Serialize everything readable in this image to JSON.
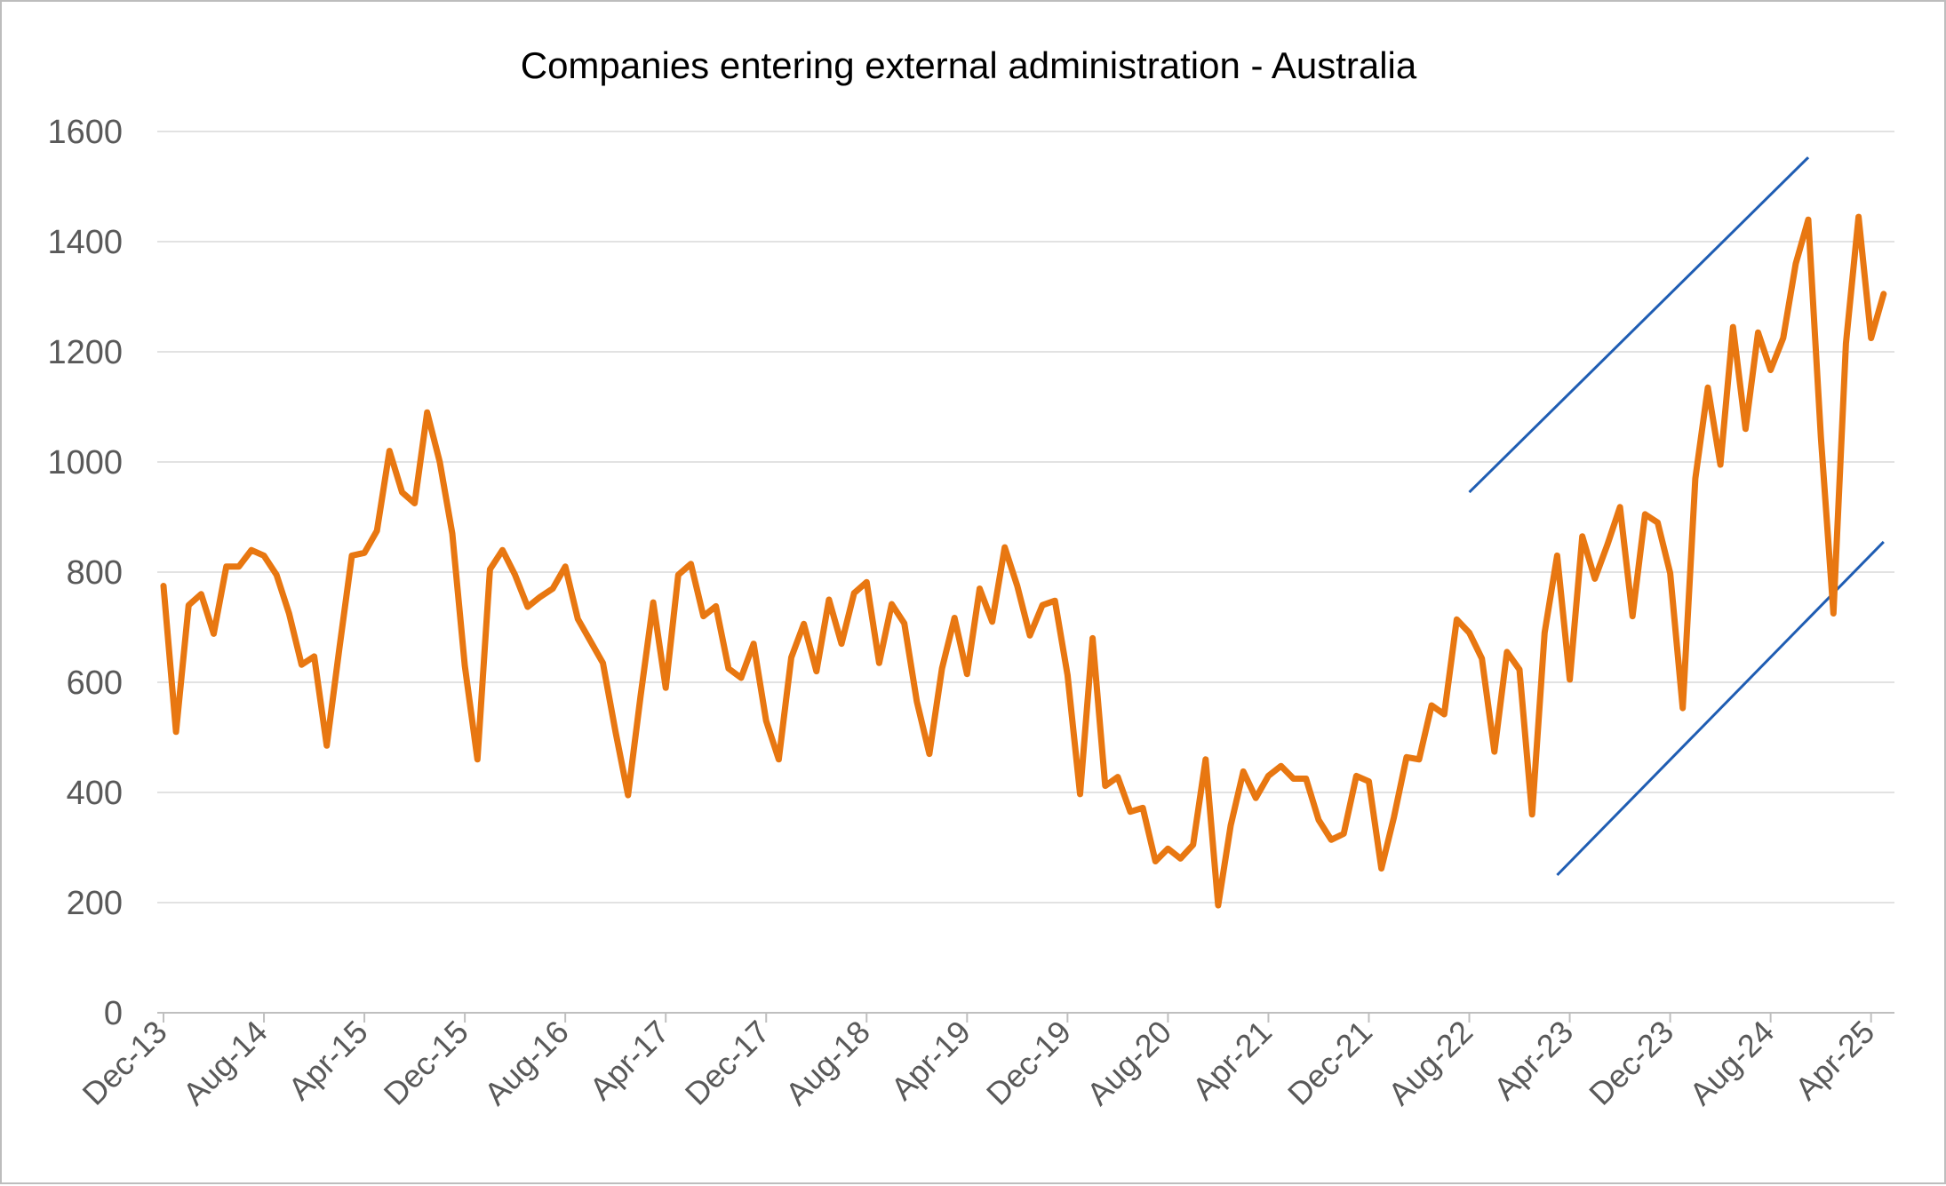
{
  "chart_data": {
    "type": "line",
    "title": "Companies entering external administration - Australia",
    "xlabel": "",
    "ylabel": "",
    "ylim": [
      0,
      1600
    ],
    "yticks": [
      0,
      200,
      400,
      600,
      800,
      1000,
      1200,
      1400,
      1600
    ],
    "grid": "horizontal",
    "legend": "none",
    "x_start": "Dec-13",
    "x_tick_labels": [
      "Dec-13",
      "Aug-14",
      "Apr-15",
      "Dec-15",
      "Aug-16",
      "Apr-17",
      "Dec-17",
      "Aug-18",
      "Apr-19",
      "Dec-19",
      "Aug-20",
      "Apr-21",
      "Dec-21",
      "Aug-22",
      "Apr-23",
      "Dec-23",
      "Aug-24",
      "Apr-25"
    ],
    "x": [
      "Dec-13",
      "Jan-14",
      "Feb-14",
      "Mar-14",
      "Apr-14",
      "May-14",
      "Jun-14",
      "Jul-14",
      "Aug-14",
      "Sep-14",
      "Oct-14",
      "Nov-14",
      "Dec-14",
      "Jan-15",
      "Feb-15",
      "Mar-15",
      "Apr-15",
      "May-15",
      "Jun-15",
      "Jul-15",
      "Aug-15",
      "Sep-15",
      "Oct-15",
      "Nov-15",
      "Dec-15",
      "Jan-16",
      "Feb-16",
      "Mar-16",
      "Apr-16",
      "May-16",
      "Jun-16",
      "Jul-16",
      "Aug-16",
      "Sep-16",
      "Oct-16",
      "Nov-16",
      "Dec-16",
      "Jan-17",
      "Feb-17",
      "Mar-17",
      "Apr-17",
      "May-17",
      "Jun-17",
      "Jul-17",
      "Aug-17",
      "Sep-17",
      "Oct-17",
      "Nov-17",
      "Dec-17",
      "Jan-18",
      "Feb-18",
      "Mar-18",
      "Apr-18",
      "May-18",
      "Jun-18",
      "Jul-18",
      "Aug-18",
      "Sep-18",
      "Oct-18",
      "Nov-18",
      "Dec-18",
      "Jan-19",
      "Feb-19",
      "Mar-19",
      "Apr-19",
      "May-19",
      "Jun-19",
      "Jul-19",
      "Aug-19",
      "Sep-19",
      "Oct-19",
      "Nov-19",
      "Dec-19",
      "Jan-20",
      "Feb-20",
      "Mar-20",
      "Apr-20",
      "May-20",
      "Jun-20",
      "Jul-20",
      "Aug-20",
      "Sep-20",
      "Oct-20",
      "Nov-20",
      "Dec-20",
      "Jan-21",
      "Feb-21",
      "Mar-21",
      "Apr-21",
      "May-21",
      "Jun-21",
      "Jul-21",
      "Aug-21",
      "Sep-21",
      "Oct-21",
      "Nov-21",
      "Dec-21",
      "Jan-22",
      "Feb-22",
      "Mar-22",
      "Apr-22",
      "May-22",
      "Jun-22",
      "Jul-22",
      "Aug-22",
      "Sep-22",
      "Oct-22",
      "Nov-22",
      "Dec-22",
      "Jan-23",
      "Feb-23",
      "Mar-23",
      "Apr-23",
      "May-23",
      "Jun-23",
      "Jul-23",
      "Aug-23",
      "Sep-23",
      "Oct-23",
      "Nov-23",
      "Dec-23",
      "Jan-24",
      "Feb-24",
      "Mar-24",
      "Apr-24",
      "May-24",
      "Jun-24",
      "Jul-24",
      "Aug-24",
      "Sep-24",
      "Oct-24",
      "Nov-24",
      "Dec-24",
      "Jan-25",
      "Feb-25",
      "Mar-25",
      "Apr-25",
      "May-25"
    ],
    "series": [
      {
        "color": "#E87711",
        "values": [
          775,
          510,
          740,
          760,
          688,
          810,
          810,
          840,
          830,
          795,
          725,
          632,
          647,
          485,
          660,
          830,
          835,
          875,
          1020,
          945,
          925,
          1090,
          1000,
          870,
          630,
          460,
          805,
          840,
          795,
          737,
          755,
          770,
          810,
          715,
          675,
          635,
          510,
          395,
          575,
          745,
          590,
          795,
          815,
          720,
          738,
          625,
          608,
          670,
          530,
          460,
          645,
          706,
          620,
          750,
          670,
          762,
          782,
          635,
          742,
          707,
          565,
          470,
          625,
          717,
          615,
          770,
          710,
          845,
          775,
          685,
          740,
          748,
          613,
          397,
          680,
          412,
          428,
          365,
          372,
          275,
          298,
          280,
          305,
          460,
          195,
          340,
          438,
          390,
          430,
          448,
          425,
          425,
          350,
          314,
          325,
          430,
          420,
          262,
          355,
          464,
          460,
          558,
          542,
          714,
          690,
          643,
          474,
          655,
          623,
          360,
          690,
          830,
          605,
          865,
          788,
          850,
          918,
          720,
          905,
          890,
          798,
          553,
          970,
          1135,
          995,
          1245,
          1060,
          1235,
          1167,
          1225,
          1360,
          1440,
          1045,
          725,
          1215,
          1445,
          1225,
          1305
        ]
      }
    ],
    "trend_lines": [
      {
        "color": "#1F5DB3",
        "from": {
          "x": "Aug-22",
          "y": 945
        },
        "to": {
          "x": "Nov-24",
          "y": 1553
        }
      },
      {
        "color": "#1F5DB3",
        "from": {
          "x": "Mar-23",
          "y": 250
        },
        "to": {
          "x": "May-25",
          "y": 855
        }
      }
    ]
  }
}
